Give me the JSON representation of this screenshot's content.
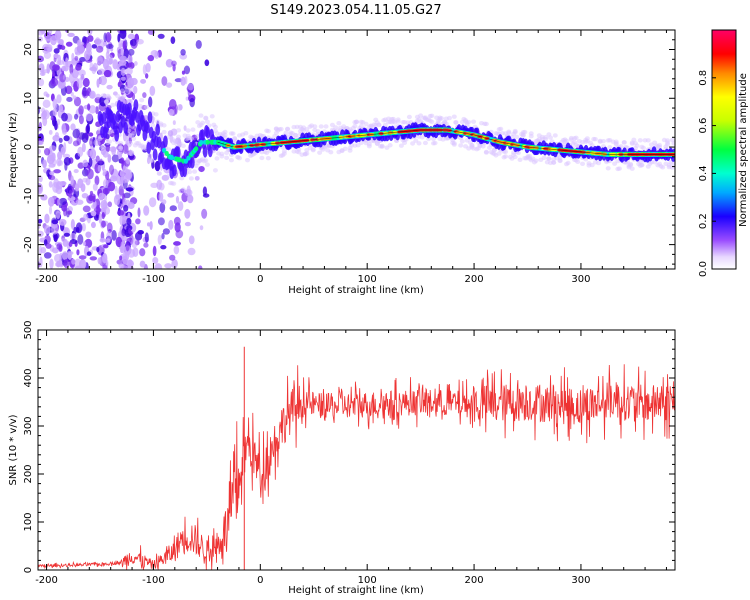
{
  "figure": {
    "title": "S149.2023.054.11.05.G27"
  },
  "chart_data": [
    {
      "type": "heatmap",
      "xlabel": "Height of straight line (km)",
      "ylabel": "Frequency (Hz)",
      "xlim": [
        -208,
        388
      ],
      "ylim": [
        -25,
        24
      ],
      "xticks": [
        -200,
        -100,
        0,
        100,
        200,
        300
      ],
      "yticks": [
        -20,
        -10,
        0,
        10,
        20
      ],
      "colorbar": {
        "label": "Normalized spectral amplitude",
        "range": [
          0,
          1
        ],
        "ticks": [
          "0.0",
          "0.2",
          "0.4",
          "0.6",
          "0.8"
        ]
      },
      "ridge": {
        "x": [
          -150,
          -120,
          -100,
          -85,
          -70,
          -55,
          -40,
          -25,
          0,
          25,
          50,
          75,
          100,
          125,
          150,
          175,
          200,
          225,
          250,
          275,
          300,
          325,
          350,
          375,
          388
        ],
        "y": [
          5,
          6,
          2,
          -2,
          -3,
          1,
          1,
          0,
          0.5,
          1,
          1.5,
          2,
          2.5,
          3,
          3.5,
          3.5,
          2.5,
          1,
          0,
          -0.5,
          -1,
          -1.5,
          -1.5,
          -1.5,
          -1.5
        ]
      }
    },
    {
      "type": "line",
      "xlabel": "Height of straight line (km)",
      "ylabel": "SNR (10 * v/v)",
      "xlim": [
        -208,
        388
      ],
      "ylim": [
        0,
        500
      ],
      "xticks": [
        -200,
        -100,
        0,
        100,
        200,
        300
      ],
      "yticks": [
        0,
        100,
        200,
        300,
        400,
        500
      ],
      "series": [
        {
          "color": "#ee3333",
          "x": [
            -208,
            -180,
            -150,
            -130,
            -120,
            -110,
            -100,
            -80,
            -70,
            -60,
            -50,
            -40,
            -30,
            -20,
            -15,
            -10,
            0,
            10,
            20,
            30,
            40,
            60,
            100,
            150,
            200,
            250,
            300,
            330,
            360,
            388
          ],
          "y": [
            8,
            10,
            12,
            15,
            30,
            20,
            10,
            40,
            80,
            60,
            40,
            50,
            100,
            180,
            250,
            260,
            200,
            250,
            300,
            335,
            350,
            340,
            345,
            350,
            345,
            350,
            340,
            355,
            345,
            350
          ]
        }
      ]
    }
  ]
}
